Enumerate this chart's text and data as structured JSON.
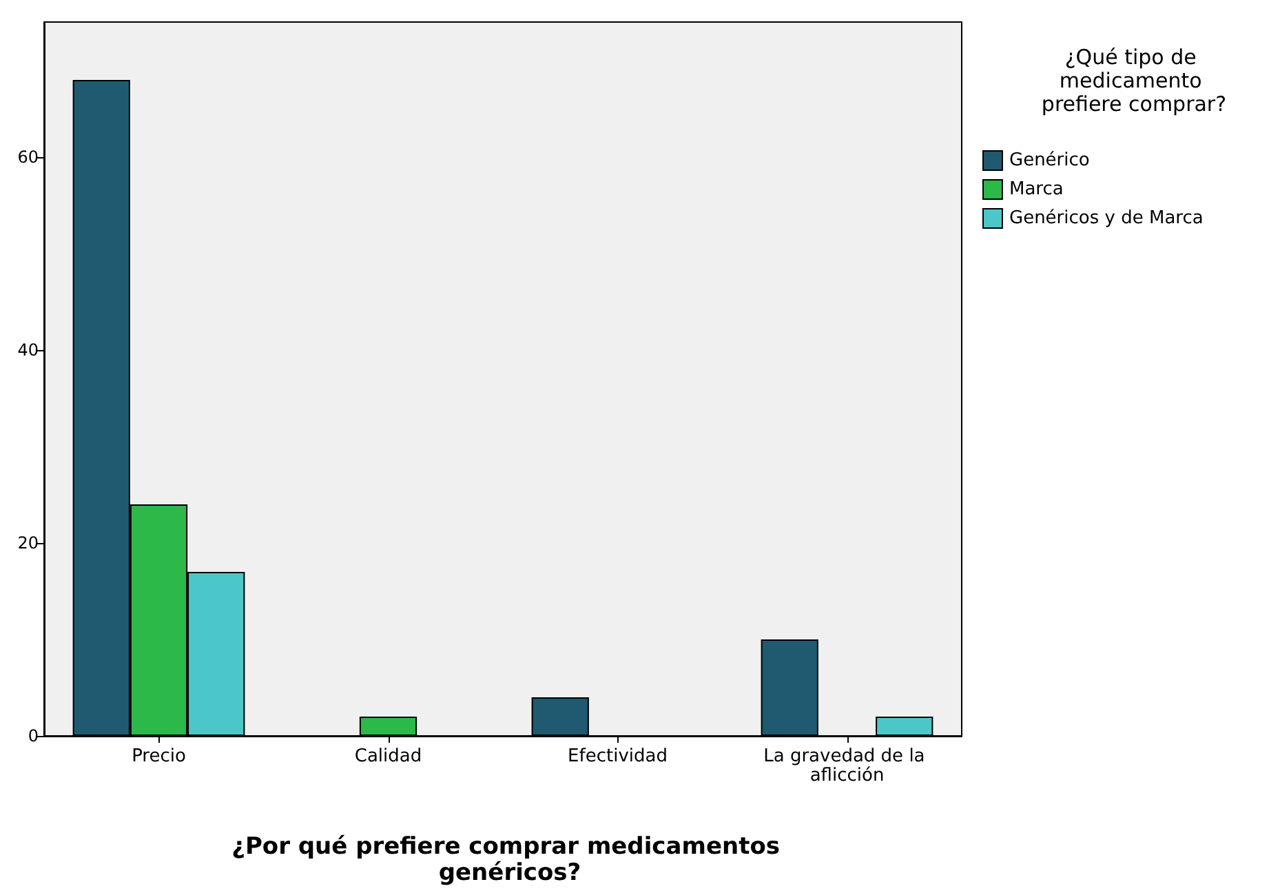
{
  "chart_data": {
    "type": "bar",
    "xlabel": "¿Por qué prefiere comprar medicamentos genéricos?",
    "legend_title": "¿Qué tipo de medicamento prefiere comprar?",
    "categories": [
      "Precio",
      "Calidad",
      "Efectividad",
      "La gravedad de la aflicción"
    ],
    "series": [
      {
        "name": "Genérico",
        "color": "#1f5a70",
        "values": [
          68,
          null,
          4,
          10
        ]
      },
      {
        "name": "Marca",
        "color": "#2db84a",
        "values": [
          24,
          2,
          null,
          null
        ]
      },
      {
        "name": "Genéricos y de Marca",
        "color": "#4cc7c9",
        "values": [
          17,
          null,
          null,
          2
        ]
      }
    ],
    "ylim": [
      0,
      74
    ],
    "yticks": [
      0,
      20,
      40,
      60
    ],
    "grid": false,
    "legend": "right"
  }
}
